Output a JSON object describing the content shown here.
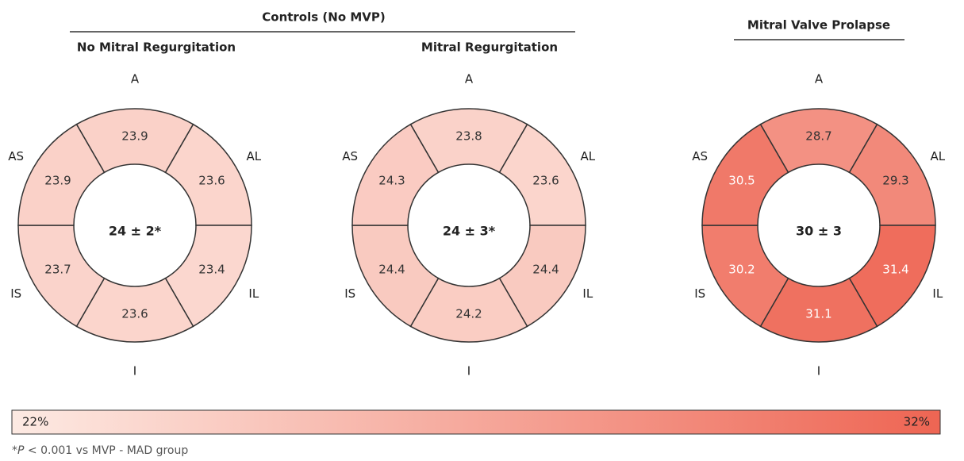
{
  "groups": [
    {
      "label": "Controls (No MVP)"
    },
    {
      "label": "Mitral Valve Prolapse"
    }
  ],
  "chart_data": [
    {
      "type": "segment-ring",
      "title": "No Mitral Regurgitation",
      "center_label": "24 ± 2*",
      "categories": [
        "A",
        "AL",
        "IL",
        "I",
        "IS",
        "AS"
      ],
      "values": [
        23.9,
        23.6,
        23.4,
        23.6,
        23.7,
        23.9
      ]
    },
    {
      "type": "segment-ring",
      "title": "Mitral Regurgitation",
      "center_label": "24 ± 3*",
      "categories": [
        "A",
        "AL",
        "IL",
        "I",
        "IS",
        "AS"
      ],
      "values": [
        23.8,
        23.6,
        24.4,
        24.2,
        24.4,
        24.3
      ]
    },
    {
      "type": "segment-ring",
      "center_label": "30 ± 3",
      "categories": [
        "A",
        "AL",
        "IL",
        "I",
        "IS",
        "AS"
      ],
      "values": [
        28.7,
        29.3,
        31.4,
        31.1,
        30.2,
        30.5
      ]
    }
  ],
  "colorbar": {
    "lim": [
      22,
      32
    ],
    "ticks": [
      {
        "value": 22,
        "label": "22%"
      },
      {
        "value": 32,
        "label": "32%"
      }
    ],
    "colors": [
      "#fdeae3",
      "#ee6553"
    ]
  },
  "footnote": [
    "*",
    "P",
    " < 0.001 vs MVP - MAD group"
  ]
}
